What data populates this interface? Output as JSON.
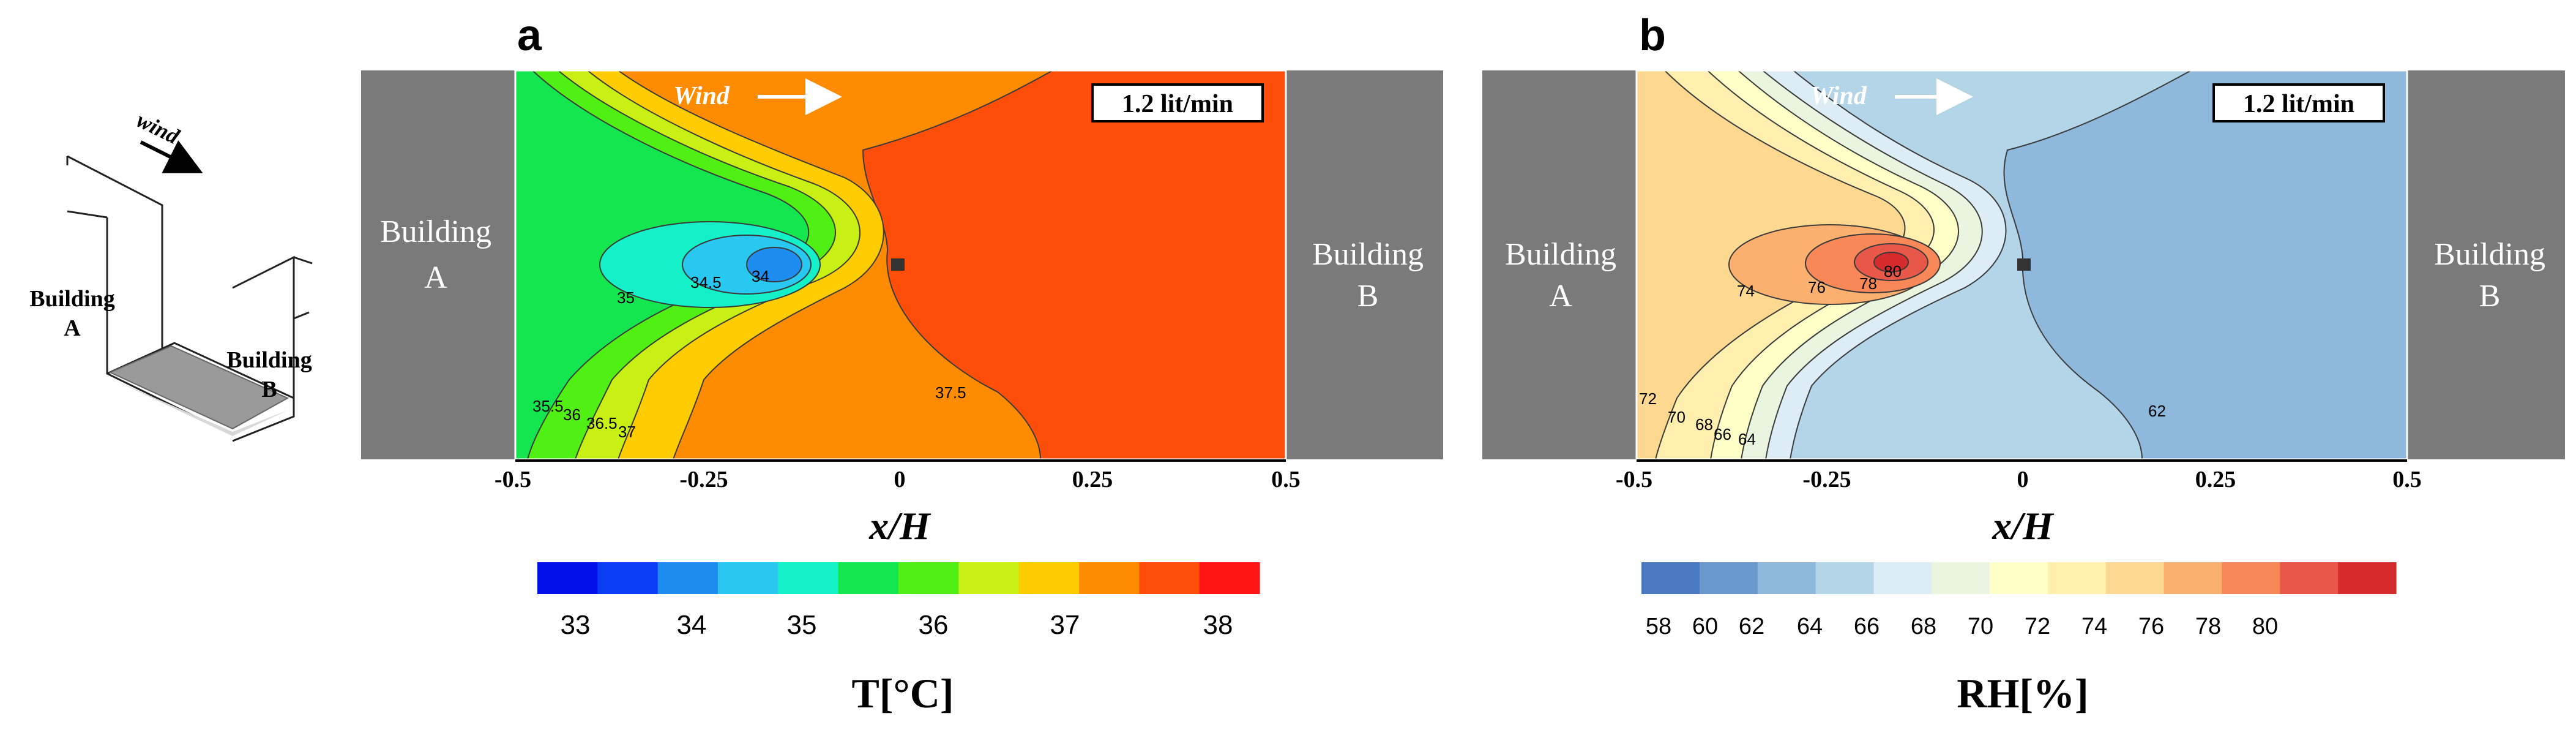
{
  "schematic": {
    "wind_label": "wind",
    "building_a_line1": "Building",
    "building_a_line2": "A",
    "building_b_line1": "Building",
    "building_b_line2": "B"
  },
  "panels": [
    {
      "panel_label": "a",
      "wind_label": "Wind",
      "flow_rate": "1.2 lit/min",
      "building_left_line1": "Building",
      "building_left_line2": "A",
      "building_right_line1": "Building",
      "building_right_line2": "B",
      "x_ticks": [
        "-0.5",
        "-0.25",
        "0",
        "0.25",
        "0.5"
      ],
      "x_label": "x/H",
      "colorbar_title": "T[°C]",
      "colorbar_tick_labels": [
        "33",
        "34",
        "35",
        "36",
        "37",
        "38"
      ],
      "colorbar_colors": [
        "#0010e6",
        "#0a3cf5",
        "#1e8cf0",
        "#28c8f0",
        "#14f0c8",
        "#14e650",
        "#50f014",
        "#c8f014",
        "#ffcc00",
        "#ff8c00",
        "#ff4d0a",
        "#ff1414"
      ],
      "contour_labels": [
        "34",
        "34.5",
        "35",
        "35.5",
        "36",
        "36.5",
        "37",
        "37.5"
      ]
    },
    {
      "panel_label": "b",
      "wind_label": "Wind",
      "flow_rate": "1.2 lit/min",
      "building_left_line1": "Building",
      "building_left_line2": "A",
      "building_right_line1": "Building",
      "building_right_line2": "B",
      "x_ticks": [
        "-0.5",
        "-0.25",
        "0",
        "0.25",
        "0.5"
      ],
      "x_label": "x/H",
      "colorbar_title": "RH[%]",
      "colorbar_tick_labels": [
        "58",
        "60",
        "62",
        "64",
        "66",
        "68",
        "70",
        "72",
        "74",
        "76",
        "78",
        "80"
      ],
      "colorbar_colors": [
        "#4a78c0",
        "#6a98cc",
        "#8eb8dc",
        "#b4d4e8",
        "#dcedf5",
        "#eaf5e0",
        "#ffffc8",
        "#fff0b0",
        "#fdd890",
        "#fcb070",
        "#f88858",
        "#e85848",
        "#d42c2c"
      ],
      "contour_labels": [
        "80",
        "78",
        "76",
        "74",
        "72",
        "70",
        "68",
        "66",
        "64",
        "62"
      ]
    }
  ]
}
